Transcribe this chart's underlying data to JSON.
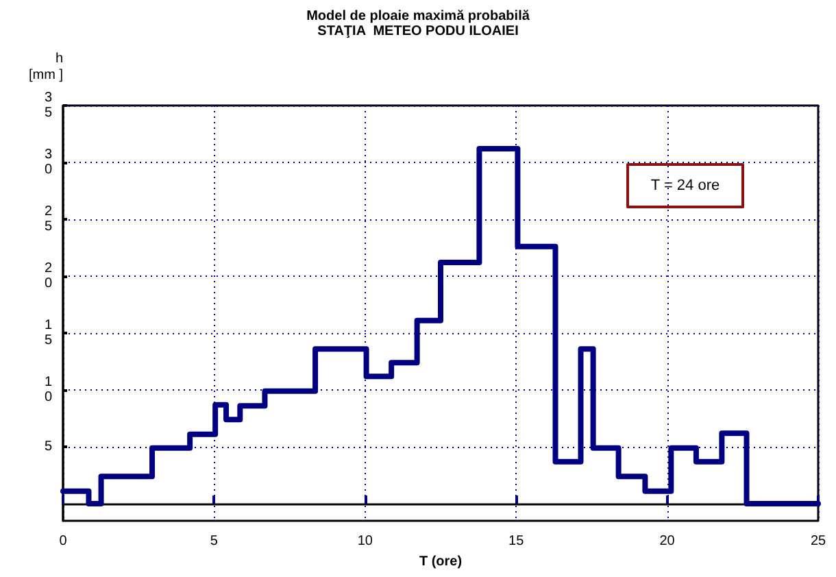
{
  "chart_data": {
    "type": "step",
    "title": "Model de ploaie maximă probabilă",
    "subtitle": "STAŢIA  METEO PODU ILOAIEI",
    "xlabel": "T (ore)",
    "ylabel": "h\n[mm ]",
    "annotations": [
      "T = 24 ore"
    ],
    "x": [
      0,
      0.85,
      1.26,
      2.95,
      4.2,
      5.04,
      5.4,
      5.86,
      6.68,
      8.35,
      10.04,
      10.87,
      11.72,
      12.5,
      13.78,
      15.05,
      16.3,
      17.14,
      17.55,
      18.39,
      19.27,
      20.13,
      20.96,
      21.81,
      22.63,
      25
    ],
    "series": [
      {
        "color": "#000080",
        "values": [
          1.1,
          0,
          2.4,
          4.9,
          6.1,
          8.7,
          7.4,
          8.6,
          9.9,
          13.6,
          11.2,
          12.4,
          16.1,
          21.2,
          31.2,
          22.6,
          3.7,
          13.6,
          4.9,
          2.4,
          1.1,
          4.9,
          3.7,
          6.2,
          0,
          0
        ]
      }
    ],
    "xlim": [
      0,
      25
    ],
    "xticks": [
      0,
      5,
      10,
      15,
      20,
      25
    ],
    "ylim": [
      -1.5,
      35
    ],
    "yticks": [
      5,
      10,
      15,
      20,
      25,
      30,
      35
    ],
    "grid": true,
    "marker": "none",
    "line_style": "solid"
  }
}
